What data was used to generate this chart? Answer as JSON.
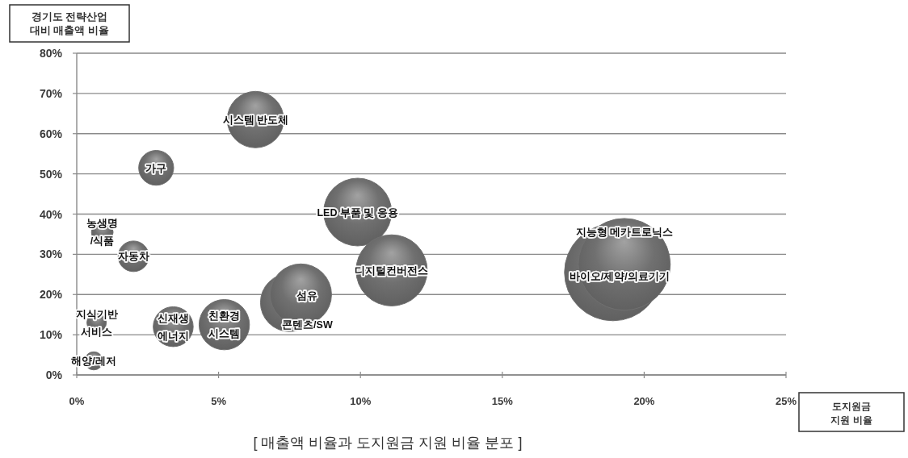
{
  "chart_data": {
    "type": "bubble",
    "title": "[ 매출액 비율과 도지원금 지원 비율 분포 ]",
    "xlabel": "도지원금\n지원 비율",
    "ylabel": "경기도 전략산업\n대비 매출액 비율",
    "xlim": [
      0,
      25
    ],
    "ylim": [
      0,
      80
    ],
    "xticks": [
      {
        "value": 0,
        "label": "0%"
      },
      {
        "value": 5,
        "label": "5%"
      },
      {
        "value": 10,
        "label": "10%"
      },
      {
        "value": 15,
        "label": "15%"
      },
      {
        "value": 20,
        "label": "20%"
      },
      {
        "value": 25,
        "label": "25%"
      }
    ],
    "yticks": [
      {
        "value": 0,
        "label": "0%"
      },
      {
        "value": 10,
        "label": "10%"
      },
      {
        "value": 20,
        "label": "20%"
      },
      {
        "value": 30,
        "label": "30%"
      },
      {
        "value": 40,
        "label": "40%"
      },
      {
        "value": 50,
        "label": "50%"
      },
      {
        "value": 60,
        "label": "60%"
      },
      {
        "value": 70,
        "label": "70%"
      },
      {
        "value": 80,
        "label": "80%"
      }
    ],
    "grid": "y",
    "series": [
      {
        "name": "바이오/제약/의료기기",
        "color": "#707070",
        "x": [
          18.9
        ],
        "values": [
          25.5
        ],
        "sizes": [
          1
        ]
      },
      {
        "name": "지능형 메카트로닉스",
        "color": "#707070",
        "x": [
          19.3
        ],
        "values": [
          27.5
        ],
        "sizes": [
          0.9
        ]
      },
      {
        "name": "LED 부품 및 응용",
        "color": "#707070",
        "x": [
          9.9
        ],
        "values": [
          40.5
        ],
        "sizes": [
          0.49
        ]
      },
      {
        "name": "디지털컨버전스",
        "color": "#707070",
        "x": [
          11.1
        ],
        "values": [
          26
        ],
        "sizes": [
          0.54
        ]
      },
      {
        "name": "시스템 반도체",
        "color": "#707070",
        "x": [
          6.3
        ],
        "values": [
          63.5
        ],
        "sizes": [
          0.34
        ]
      },
      {
        "name": "콘텐츠/SW",
        "color": "#707070",
        "x": [
          7.5
        ],
        "values": [
          18
        ],
        "sizes": [
          0.36
        ]
      },
      {
        "name": "섬유",
        "color": "#707070",
        "x": [
          7.9
        ],
        "values": [
          20
        ],
        "sizes": [
          0.4
        ]
      },
      {
        "name": "친환경\n시스템",
        "color": "#707070",
        "x": [
          5.2
        ],
        "values": [
          12.5
        ],
        "sizes": [
          0.27
        ]
      },
      {
        "name": "신재생\n에너지",
        "color": "#707070",
        "x": [
          3.4
        ],
        "values": [
          12
        ],
        "sizes": [
          0.17
        ]
      },
      {
        "name": "가구",
        "color": "#707070",
        "x": [
          2.8
        ],
        "values": [
          51.5
        ],
        "sizes": [
          0.13
        ]
      },
      {
        "name": "자동차",
        "color": "#707070",
        "x": [
          2.0
        ],
        "values": [
          29.5
        ],
        "sizes": [
          0.1
        ]
      },
      {
        "name": "농생명\n/식품",
        "color": "#707070",
        "x": [
          0.9
        ],
        "values": [
          35.5
        ],
        "sizes": [
          0.05
        ]
      },
      {
        "name": "지식기반\n서비스",
        "color": "#707070",
        "x": [
          0.7
        ],
        "values": [
          13
        ],
        "sizes": [
          0.04
        ]
      },
      {
        "name": "해양/레저",
        "color": "#707070",
        "x": [
          0.6
        ],
        "values": [
          3.5
        ],
        "sizes": [
          0.035
        ]
      }
    ]
  }
}
